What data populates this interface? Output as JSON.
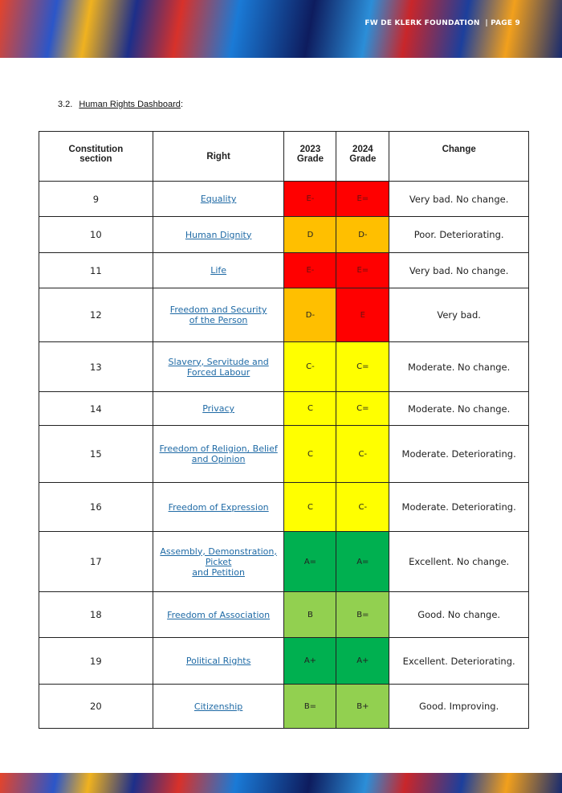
{
  "header": {
    "text": "FW DE KLERK FOUNDATION  | PAGE 9"
  },
  "section": {
    "number": "3.2.",
    "title": "Human Rights Dashboard",
    "suffix": ":"
  },
  "table": {
    "columns": [
      "Constitution\nsection",
      "Right",
      "2023\nGrade",
      "2024\nGrade",
      "Change"
    ],
    "rows": [
      [
        "9",
        "Equality",
        "E-",
        "E=",
        "Very bad. No change."
      ],
      [
        "10",
        "Human Dignity",
        "D",
        "D-",
        "Poor. Deteriorating."
      ],
      [
        "11",
        "Life",
        "E-",
        "E=",
        "Very bad. No change."
      ],
      [
        "12",
        "Freedom and Security\nof the Person",
        "D-",
        "E",
        "Very bad."
      ],
      [
        "13",
        "Slavery, Servitude and\nForced Labour",
        "C-",
        "C=",
        "Moderate. No change."
      ],
      [
        "14",
        "Privacy",
        "C",
        "C=",
        "Moderate. No change."
      ],
      [
        "15",
        "Freedom of Religion, Belief\nand Opinion",
        "C",
        "C-",
        "Moderate. Deteriorating."
      ],
      [
        "16",
        "Freedom of Expression",
        "C",
        "C-",
        "Moderate. Deteriorating."
      ],
      [
        "17",
        "Assembly, Demonstration,\nPicket\nand Petition",
        "A=",
        "A=",
        "Excellent. No change."
      ],
      [
        "18",
        "Freedom of Association",
        "B",
        "B=",
        "Good. No change."
      ],
      [
        "19",
        "Political Rights",
        "A+",
        "A+",
        "Excellent. Deteriorating."
      ],
      [
        "20",
        "Citizenship",
        "B=",
        "B+",
        "Good. Improving."
      ]
    ]
  }
}
